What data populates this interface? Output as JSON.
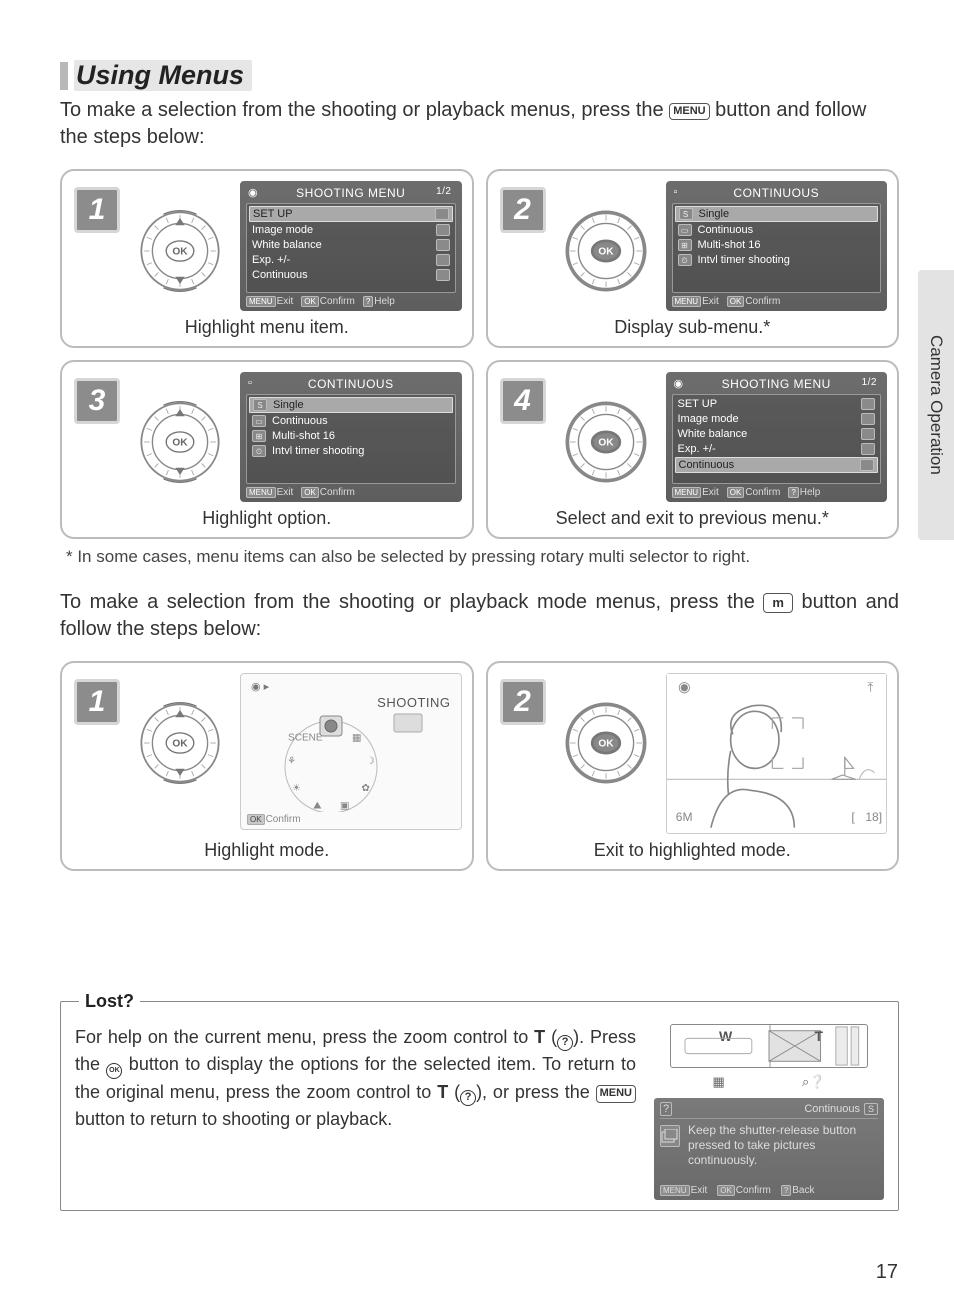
{
  "heading": "Using Menus",
  "intro_before": "To make a selection from the shooting or playback menus, press the ",
  "intro_menu_badge": "MENU",
  "intro_after": " button and follow the steps below:",
  "side_tab": "Camera Operation",
  "page_number": "17",
  "steps_a": [
    {
      "num": "1",
      "caption": "Highlight menu item.",
      "dial_type": "updown",
      "dial_label": "OK",
      "lcd": {
        "title": "SHOOTING MENU",
        "title_icon": "◉",
        "page": "1/2",
        "rows": [
          {
            "label": "SET UP",
            "hl": true,
            "end": true
          },
          {
            "label": "Image mode",
            "hl": false,
            "end": true
          },
          {
            "label": "White balance",
            "hl": false,
            "end": true
          },
          {
            "label": "Exp. +/-",
            "hl": false,
            "end": true
          },
          {
            "label": "Continuous",
            "hl": false,
            "end": true
          }
        ],
        "foot": [
          {
            "tag": "MENU",
            "text": "Exit"
          },
          {
            "tag": "OK",
            "text": "Confirm"
          },
          {
            "tag": "?",
            "text": "Help"
          }
        ]
      }
    },
    {
      "num": "2",
      "caption": "Display sub-menu.*",
      "dial_type": "ok",
      "dial_label": "OK",
      "lcd": {
        "title": "CONTINUOUS",
        "title_icon": "▫",
        "rows": [
          {
            "icon": "S",
            "label": "Single",
            "hl": true
          },
          {
            "icon": "▭",
            "label": "Continuous",
            "hl": false
          },
          {
            "icon": "⊞",
            "label": "Multi-shot 16",
            "hl": false
          },
          {
            "icon": "⏲",
            "label": "Intvl timer shooting",
            "hl": false
          }
        ],
        "foot": [
          {
            "tag": "MENU",
            "text": "Exit"
          },
          {
            "tag": "OK",
            "text": "Confirm"
          }
        ]
      }
    },
    {
      "num": "3",
      "caption": "Highlight option.",
      "dial_type": "updown",
      "dial_label": "OK",
      "lcd": {
        "title": "CONTINUOUS",
        "title_icon": "▫",
        "rows": [
          {
            "icon": "S",
            "label": "Single",
            "hl": true
          },
          {
            "icon": "▭",
            "label": "Continuous",
            "hl": false
          },
          {
            "icon": "⊞",
            "label": "Multi-shot 16",
            "hl": false
          },
          {
            "icon": "⏲",
            "label": "Intvl timer shooting",
            "hl": false
          }
        ],
        "foot": [
          {
            "tag": "MENU",
            "text": "Exit"
          },
          {
            "tag": "OK",
            "text": "Confirm"
          }
        ]
      }
    },
    {
      "num": "4",
      "caption": "Select and exit to previous menu.*",
      "dial_type": "ok",
      "dial_label": "OK",
      "lcd": {
        "title": "SHOOTING MENU",
        "title_icon": "◉",
        "page": "1/2",
        "rows": [
          {
            "label": "SET UP",
            "hl": false,
            "end": true
          },
          {
            "label": "Image mode",
            "hl": false,
            "end": true
          },
          {
            "label": "White balance",
            "hl": false,
            "end": true
          },
          {
            "label": "Exp. +/-",
            "hl": false,
            "end": true
          },
          {
            "label": "Continuous",
            "hl": true,
            "end": true
          }
        ],
        "foot": [
          {
            "tag": "MENU",
            "text": "Exit"
          },
          {
            "tag": "OK",
            "text": "Confirm"
          },
          {
            "tag": "?",
            "text": "Help"
          }
        ]
      }
    }
  ],
  "footnote_a": "*  In some cases, menu items can also be selected by pressing rotary multi selector to right.",
  "intro2_before": "To make a selection from the shooting or playback mode menus, press the ",
  "intro2_badge": "m",
  "intro2_after": " button and follow the steps below:",
  "steps_b": [
    {
      "num": "1",
      "caption": "Highlight mode.",
      "dial_type": "updown",
      "dial_label": "OK",
      "mode_lcd": {
        "label": "SHOOTING",
        "foot_tag": "OK",
        "foot_text": "Confirm",
        "icons": [
          "◉",
          "▦",
          "☽",
          "✿",
          "▣",
          "⛰",
          "☀",
          "⚘",
          "SCENE"
        ]
      }
    },
    {
      "num": "2",
      "caption": "Exit to highlighted mode.",
      "dial_type": "ok",
      "dial_label": "OK",
      "liveview": {
        "tl": "◉",
        "tr": "⤒",
        "bl": "6M",
        "br_a": "[",
        "br_b": "18]"
      }
    }
  ],
  "lost": {
    "legend": "Lost?",
    "t1": "For help on the current menu, press the zoom control to ",
    "t2": "T",
    "t3": " (",
    "t4": ").  Press the ",
    "t5": " button to display the options for the selected item.  To return to the original menu, press the zoom control to ",
    "t6": "T",
    "t7": " (",
    "t8": "), or press the ",
    "t9": "MENU",
    "t10": " button to return to shooting or playback.",
    "zoom_w": "W",
    "zoom_t": "T",
    "zoom_sub_l": "▦",
    "zoom_sub_r": "⌕❔",
    "help_title_l": "?",
    "help_title_r": "Continuous",
    "help_title_r_icon": "S",
    "help_body": "Keep the shutter-release button pressed to take pictures continuously.",
    "help_foot": [
      {
        "tag": "MENU",
        "text": "Exit"
      },
      {
        "tag": "OK",
        "text": "Confirm"
      },
      {
        "tag": "?",
        "text": "Back"
      }
    ]
  }
}
